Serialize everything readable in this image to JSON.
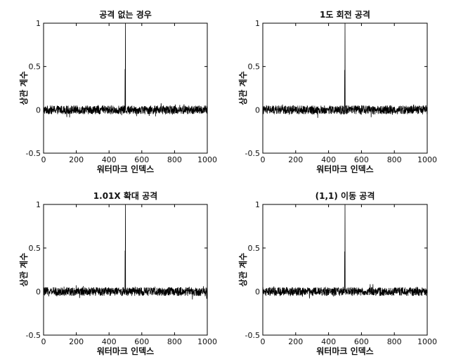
{
  "chart_data": [
    {
      "type": "line",
      "title": "공격 없는 경우",
      "xlabel": "워터마크 인덱스",
      "ylabel": "상관 계수",
      "xlim": [
        0,
        1000
      ],
      "ylim": [
        -0.5,
        1
      ],
      "xticks": [
        "0",
        "200",
        "400",
        "600",
        "800",
        "1000"
      ],
      "yticks": [
        "1",
        "0.5",
        "0",
        "-0.5"
      ],
      "series": [
        {
          "noise_level": 0.0,
          "noise_amplitude": 0.05,
          "points": 1000,
          "spike_index": 500,
          "spike_value": 1.0,
          "secondary_spike_value": 0.47,
          "secondary_spike_index": 498
        }
      ],
      "grid": false,
      "line_color": "#000000"
    },
    {
      "type": "line",
      "title": "1도 회전 공격",
      "xlabel": "워터마크 인덱스",
      "ylabel": "상관 계수",
      "xlim": [
        0,
        1000
      ],
      "ylim": [
        -0.5,
        1
      ],
      "xticks": [
        "0",
        "200",
        "400",
        "600",
        "800",
        "1000"
      ],
      "yticks": [
        "1",
        "0.5",
        "0",
        "-0.5"
      ],
      "series": [
        {
          "noise_level": 0.0,
          "noise_amplitude": 0.05,
          "points": 1000,
          "spike_index": 500,
          "spike_value": 1.0,
          "secondary_spike_value": 0.46,
          "secondary_spike_index": 498
        }
      ],
      "grid": false,
      "line_color": "#000000"
    },
    {
      "type": "line",
      "title": "1.01X 확대 공격",
      "xlabel": "워터마크 인덱스",
      "ylabel": "상관 계수",
      "xlim": [
        0,
        1000
      ],
      "ylim": [
        -0.5,
        1
      ],
      "xticks": [
        "0",
        "200",
        "400",
        "600",
        "800",
        "1000"
      ],
      "yticks": [
        "1",
        "0.5",
        "0",
        "-0.5"
      ],
      "series": [
        {
          "noise_level": 0.0,
          "noise_amplitude": 0.05,
          "points": 1000,
          "spike_index": 500,
          "spike_value": 1.0,
          "secondary_spike_value": 0.47,
          "secondary_spike_index": 498
        }
      ],
      "grid": false,
      "line_color": "#000000"
    },
    {
      "type": "line",
      "title": "(1,1) 이동 공격",
      "xlabel": "워터마크 인덱스",
      "ylabel": "상관 계수",
      "xlim": [
        0,
        1000
      ],
      "ylim": [
        -0.5,
        1
      ],
      "xticks": [
        "0",
        "200",
        "400",
        "600",
        "800",
        "1000"
      ],
      "yticks": [
        "1",
        "0.5",
        "0",
        "-0.5"
      ],
      "series": [
        {
          "noise_level": 0.0,
          "noise_amplitude": 0.05,
          "points": 1000,
          "spike_index": 500,
          "spike_value": 1.0,
          "secondary_spike_value": 0.46,
          "secondary_spike_index": 498
        }
      ],
      "grid": false,
      "line_color": "#000000"
    }
  ]
}
